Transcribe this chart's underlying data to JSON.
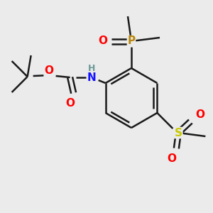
{
  "bg_color": "#ebebeb",
  "bond_color": "#1a1a1a",
  "atom_colors": {
    "O": "#ff0000",
    "N": "#1414ff",
    "P": "#b8860b",
    "S": "#c8c800",
    "C": "#1a1a1a",
    "H": "#6e9898"
  },
  "figsize": [
    3.0,
    3.0
  ],
  "dpi": 100
}
